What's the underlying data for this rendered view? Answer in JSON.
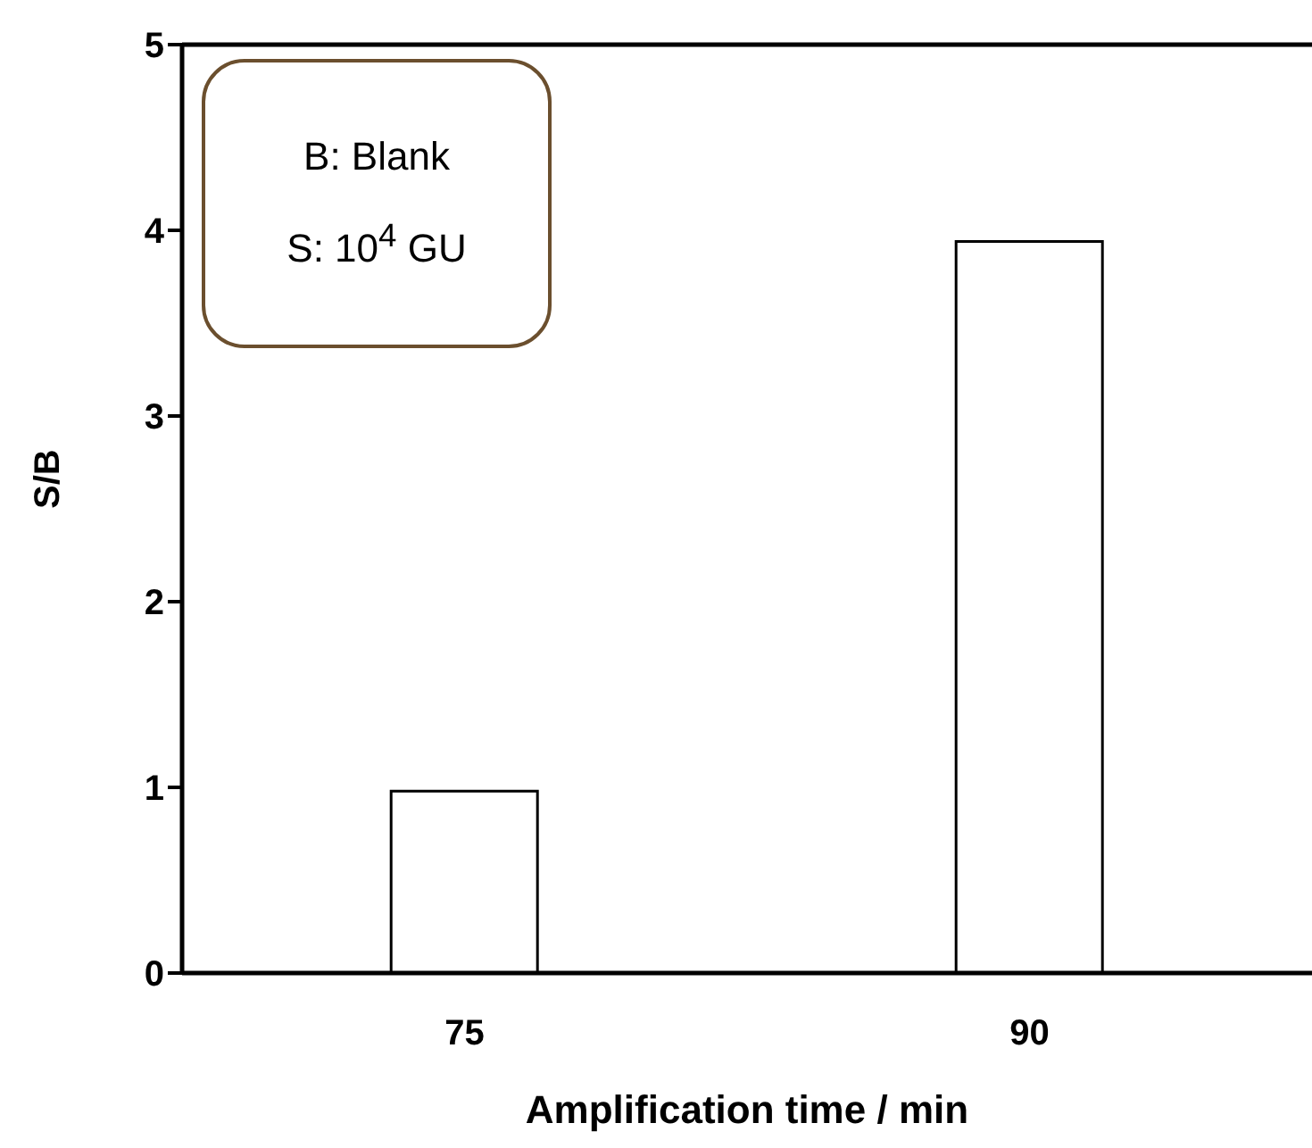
{
  "chart_data": {
    "type": "bar",
    "xlabel": "Amplification time / min",
    "ylabel": "S/B",
    "categories": [
      "75",
      "90"
    ],
    "series": [
      {
        "color": "#ffffff",
        "values": [
          0.98,
          3.94
        ]
      }
    ],
    "ylim": [
      0,
      5
    ],
    "yticks": [
      0,
      1,
      2,
      3,
      4,
      5
    ],
    "annotations": [
      "B: Blank",
      "S: 10$^{4}$ GU"
    ]
  }
}
